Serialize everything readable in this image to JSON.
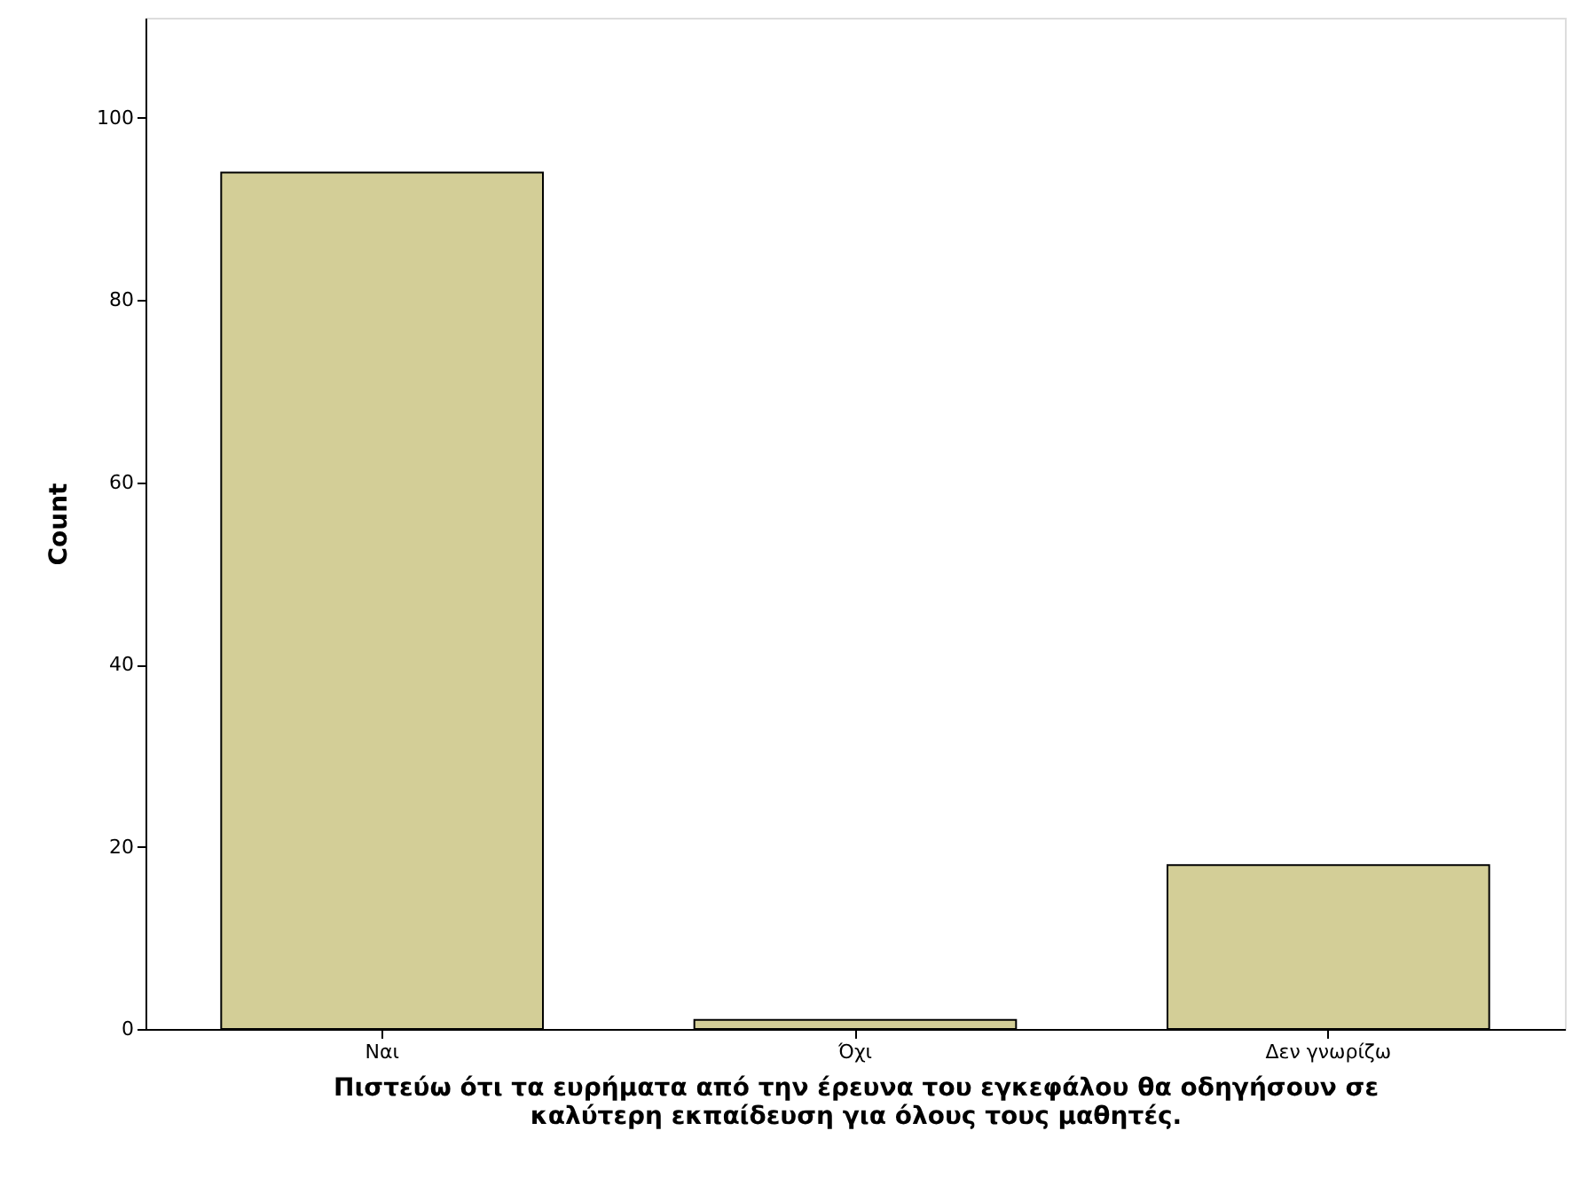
{
  "chart_data": {
    "type": "bar",
    "categories": [
      "Ναι",
      "Όχι",
      "Δεν γνωρίζω"
    ],
    "values": [
      94,
      1,
      18
    ],
    "color": "#d3ce97",
    "xlabel": "Πιστεύω ότι τα ευρήματα από την έρευνα του εγκεφάλου θα οδηγήσουν σε\nκαλύτερη εκπαίδευση για όλους τους μαθητές.",
    "ylabel": "Count",
    "ylim": [
      0,
      111
    ],
    "yticks": [
      0,
      20,
      40,
      60,
      80,
      100
    ],
    "grid": false
  }
}
